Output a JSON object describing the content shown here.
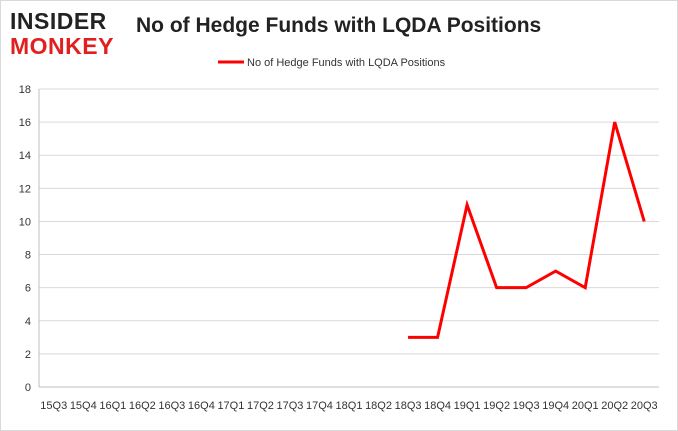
{
  "logo": {
    "line1": "INSIDER",
    "line2": "MONKEY"
  },
  "chart_data": {
    "type": "line",
    "title": "No of Hedge Funds with LQDA Positions",
    "xlabel": "",
    "ylabel": "",
    "categories": [
      "15Q3",
      "15Q4",
      "16Q1",
      "16Q2",
      "16Q3",
      "16Q4",
      "17Q1",
      "17Q2",
      "17Q3",
      "17Q4",
      "18Q1",
      "18Q2",
      "18Q3",
      "18Q4",
      "19Q1",
      "19Q2",
      "19Q3",
      "19Q4",
      "20Q1",
      "20Q2",
      "20Q3"
    ],
    "series": [
      {
        "name": "No of Hedge Funds with LQDA Positions",
        "color": "#ff0000",
        "values": [
          null,
          null,
          null,
          null,
          null,
          null,
          null,
          null,
          null,
          null,
          null,
          null,
          3,
          3,
          11,
          6,
          6,
          7,
          6,
          16,
          10
        ]
      }
    ],
    "ylim": [
      0,
      18
    ],
    "yticks": [
      0,
      2,
      4,
      6,
      8,
      10,
      12,
      14,
      16,
      18
    ],
    "grid": true,
    "legend_position": "top-center"
  }
}
